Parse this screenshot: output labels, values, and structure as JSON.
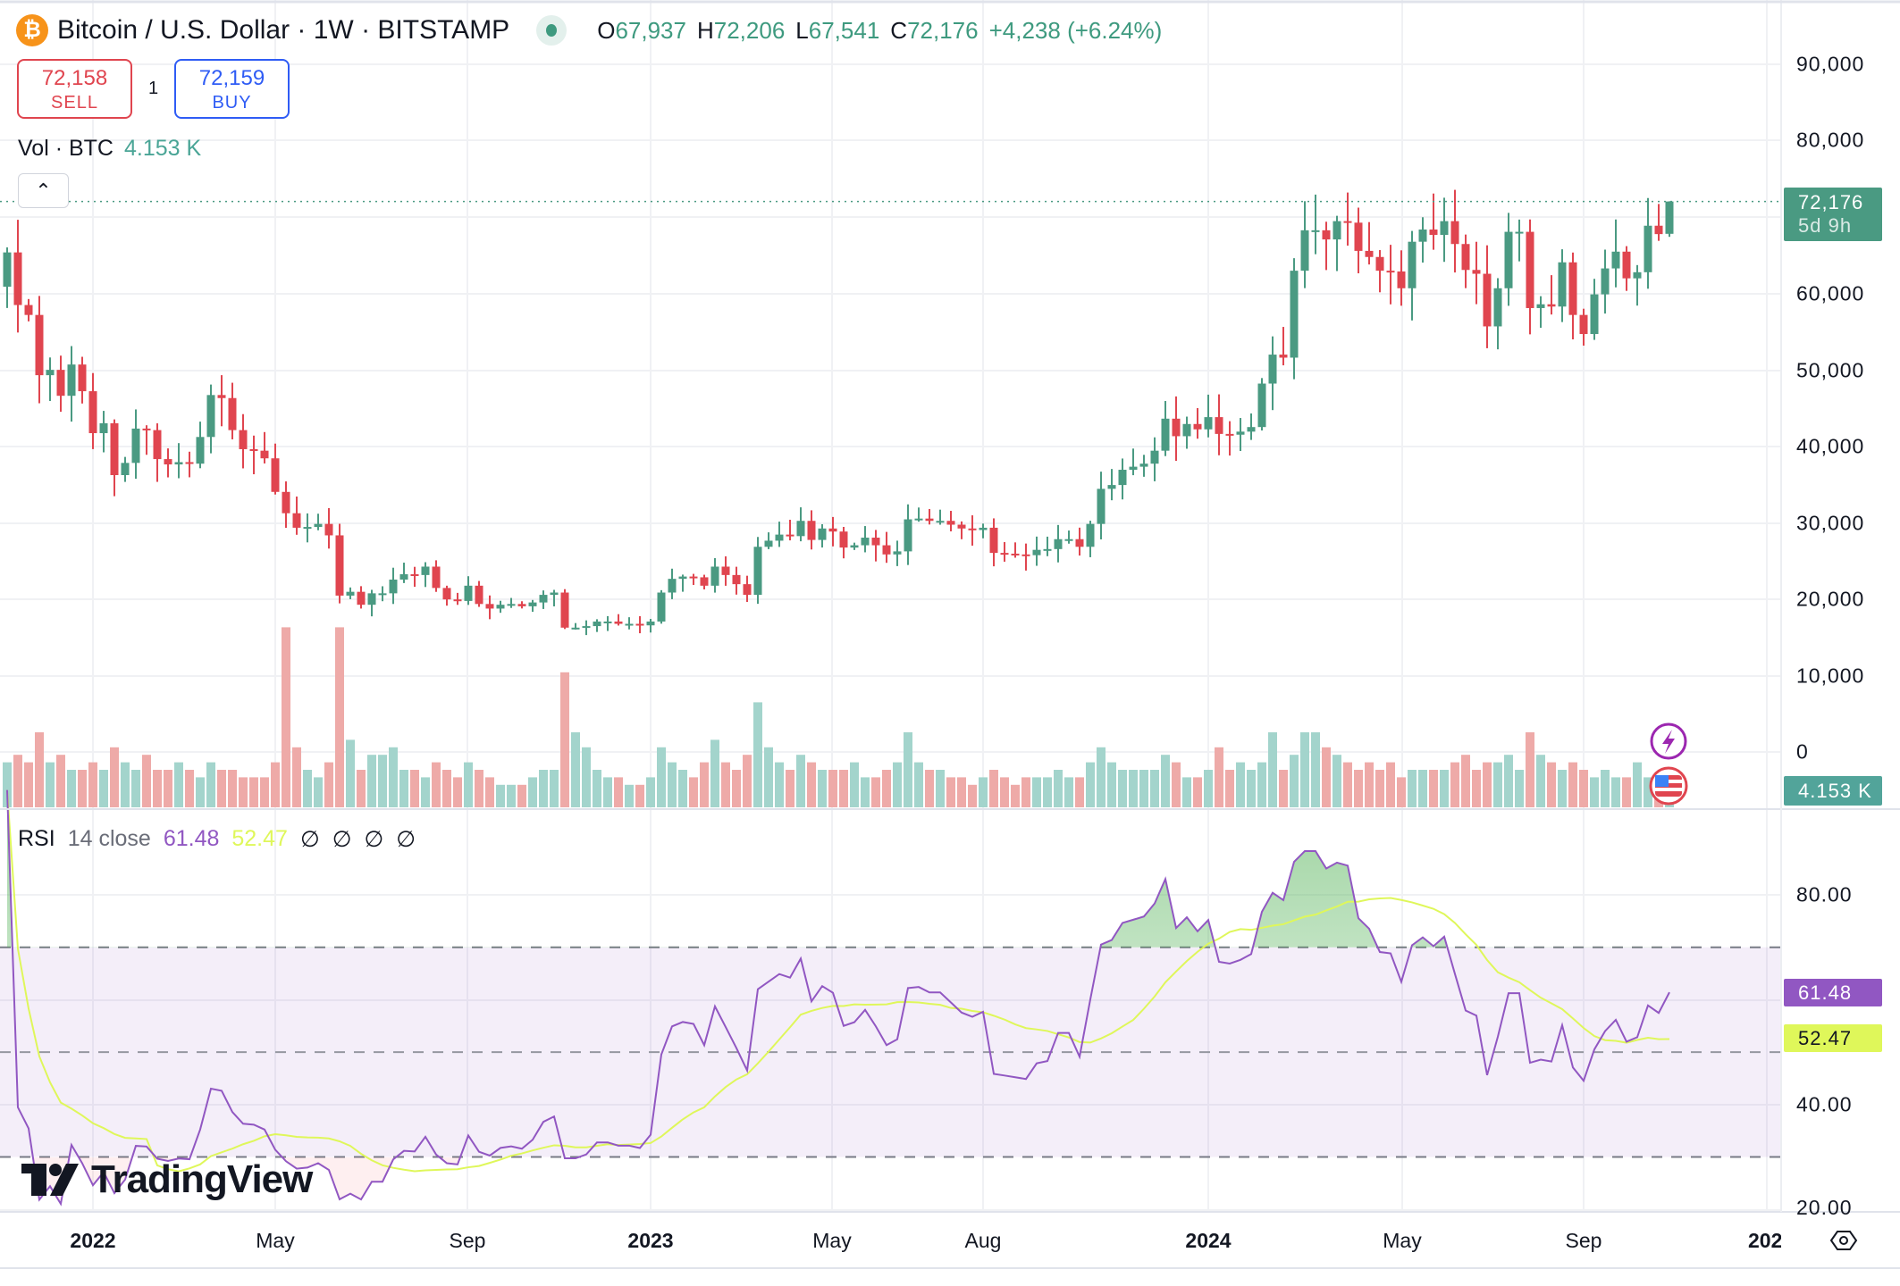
{
  "header": {
    "symbol_icon": "bitcoin-icon",
    "title": "Bitcoin / U.S. Dollar · 1W · BITSTAMP",
    "ohlc": {
      "o_label": "O",
      "o": "67,937",
      "h_label": "H",
      "h": "72,206",
      "l_label": "L",
      "l": "67,541",
      "c_label": "C",
      "c": "72,176",
      "change": "+4,238 (+6.24%)"
    }
  },
  "trade": {
    "sell_price": "72,158",
    "sell_label": "SELL",
    "spread": "1",
    "buy_price": "72,159",
    "buy_label": "BUY"
  },
  "volume_legend": {
    "label": "Vol · BTC",
    "value": "4.153 K"
  },
  "rsi_legend": {
    "name": "RSI",
    "params": "14 close",
    "rsi": "61.48",
    "ma": "52.47",
    "na": [
      "∅",
      "∅",
      "∅",
      "∅"
    ]
  },
  "price_axis": [
    "90,000",
    "80,000",
    "60,000",
    "50,000",
    "40,000",
    "30,000",
    "20,000",
    "10,000",
    "0"
  ],
  "price_tag": {
    "price": "72,176",
    "countdown": "5d 9h"
  },
  "volume_tag": "4.153 K",
  "rsi_axis": [
    "80.00",
    "40.00",
    "20.00"
  ],
  "rsi_tags": {
    "rsi": "61.48",
    "ma": "52.47"
  },
  "time_axis": [
    {
      "label": "2022",
      "bold": true
    },
    {
      "label": "May"
    },
    {
      "label": "Sep"
    },
    {
      "label": "2023",
      "bold": true
    },
    {
      "label": "May"
    },
    {
      "label": "Aug"
    },
    {
      "label": "2024",
      "bold": true
    },
    {
      "label": "May"
    },
    {
      "label": "Sep"
    },
    {
      "label": "202",
      "bold": true
    }
  ],
  "logo_text": "TradingView",
  "colors": {
    "up": "#4a9a82",
    "down": "#e0454f",
    "rsi": "#9157c2",
    "rsi_ma": "#dff75a",
    "buy": "#2f5cf5",
    "sell": "#e0454f"
  },
  "chart_data": {
    "type": "candlestick",
    "interval": "1W",
    "first_week": "2021-11-08",
    "price_ylim": [
      0,
      90000
    ],
    "first_open": 61000,
    "last_candle": {
      "open": 67937,
      "high": 72206,
      "low": 67541,
      "close": 72176
    },
    "close": [
      65500,
      58600,
      57300,
      49400,
      50100,
      46700,
      50800,
      47300,
      41800,
      43100,
      36300,
      37900,
      42400,
      42200,
      38400,
      37700,
      38000,
      37800,
      41300,
      46800,
      46400,
      42200,
      39700,
      39500,
      38500,
      34100,
      31300,
      29400,
      29500,
      29900,
      28400,
      20500,
      21000,
      19300,
      20800,
      20800,
      22600,
      23300,
      23200,
      24300,
      21500,
      20000,
      19800,
      21800,
      19400,
      18800,
      19300,
      19400,
      19100,
      19600,
      20600,
      20900,
      16300,
      16300,
      16500,
      17100,
      17100,
      16800,
      16800,
      16600,
      17100,
      20900,
      22700,
      23000,
      22900,
      21800,
      24300,
      23200,
      22000,
      20600,
      26900,
      27700,
      28500,
      28300,
      30300,
      27800,
      29300,
      28900,
      26800,
      27100,
      28100,
      27100,
      25900,
      26300,
      30500,
      30600,
      30300,
      30300,
      29800,
      29300,
      29100,
      29400,
      26100,
      26000,
      25900,
      25800,
      26500,
      26600,
      27900,
      27900,
      26900,
      29900,
      34500,
      35000,
      37000,
      37400,
      37800,
      39500,
      43700,
      41400,
      43000,
      42300,
      43900,
      41700,
      41600,
      42000,
      42600,
      48300,
      52100,
      51700,
      63100,
      68400,
      68400,
      67200,
      69600,
      69400,
      65700,
      64900,
      63100,
      63000,
      60800,
      66900,
      68500,
      67800,
      69600,
      66600,
      63200,
      62700,
      55800,
      60800,
      68200,
      68200,
      58200,
      58700,
      58400,
      64200,
      57300,
      54800,
      60000,
      63400,
      65600,
      62100,
      62900,
      69000,
      67900,
      72176
    ],
    "volume_k": [
      6,
      7,
      6,
      10,
      6,
      7,
      5,
      5,
      6,
      5,
      8,
      6,
      5,
      7,
      5,
      5,
      6,
      5,
      4,
      6,
      5,
      5,
      4,
      4,
      4,
      6,
      24,
      8,
      5,
      4,
      6,
      24,
      9,
      5,
      7,
      7,
      8,
      5,
      5,
      4,
      6,
      5,
      4,
      6,
      5,
      4,
      3,
      3,
      3,
      4,
      5,
      5,
      18,
      10,
      8,
      5,
      4,
      4,
      3,
      3,
      4,
      8,
      6,
      5,
      4,
      6,
      9,
      6,
      5,
      7,
      14,
      8,
      6,
      5,
      7,
      6,
      5,
      5,
      5,
      6,
      4,
      4,
      5,
      6,
      10,
      6,
      5,
      5,
      4,
      4,
      3,
      4,
      5,
      4,
      3,
      4,
      4,
      4,
      5,
      4,
      4,
      6,
      8,
      6,
      5,
      5,
      5,
      5,
      7,
      6,
      4,
      4,
      5,
      8,
      5,
      6,
      5,
      6,
      10,
      5,
      7,
      10,
      10,
      8,
      7,
      6,
      5,
      6,
      5,
      6,
      4,
      5,
      5,
      5,
      5,
      6,
      7,
      5,
      6,
      6,
      7,
      5,
      10,
      7,
      6,
      5,
      6,
      5,
      4,
      5,
      4,
      4,
      6,
      4,
      4,
      4.153
    ],
    "rsi_length": 14,
    "rsi_ma_length": 14,
    "rsi_ylim": [
      20,
      95
    ],
    "rsi_bands": [
      70,
      50,
      30
    ],
    "rsi_last": 61.48,
    "rsi_ma_last": 52.47
  }
}
